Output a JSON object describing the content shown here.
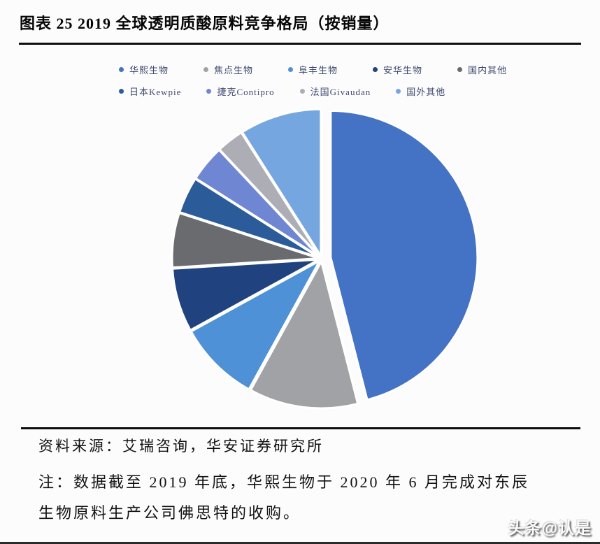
{
  "page": {
    "title": "图表 25 2019 全球透明质酸原料竞争格局（按销量）"
  },
  "chart_data": {
    "type": "pie",
    "title": "图表 25 2019 全球透明质酸原料竞争格局（按销量）",
    "categories": [
      "华熙生物",
      "焦点生物",
      "阜丰生物",
      "安华生物",
      "国内其他",
      "日本Kewpie",
      "捷克Contipro",
      "法国Givaudan",
      "国外其他"
    ],
    "values": [
      46,
      12,
      9,
      7,
      6,
      4,
      4,
      3,
      9
    ],
    "value_note": "percent shares estimated from slice angles; no data labels printed on chart",
    "colors": [
      "#4472C4",
      "#A1A2A6",
      "#4E91D6",
      "#204380",
      "#6A6B6E",
      "#2B5C99",
      "#6F87D2",
      "#ACADB5",
      "#75A6DF"
    ],
    "legend_position": "top",
    "start_angle_deg": 0,
    "direction": "clockwise",
    "exploded_slice": "华熙生物"
  },
  "legend": {
    "row1_indices": [
      0,
      1,
      2,
      3,
      4
    ],
    "row2_indices": [
      5,
      6,
      7,
      8
    ]
  },
  "footer": {
    "source": "资料来源：艾瑞咨询，华安证券研究所",
    "note_line1": "注：数据截至 2019 年底，华熙生物于 2020 年 6 月完成对东辰",
    "note_line2": "生物原料生产公司佛思特的收购。",
    "watermark": "头条@认是"
  }
}
